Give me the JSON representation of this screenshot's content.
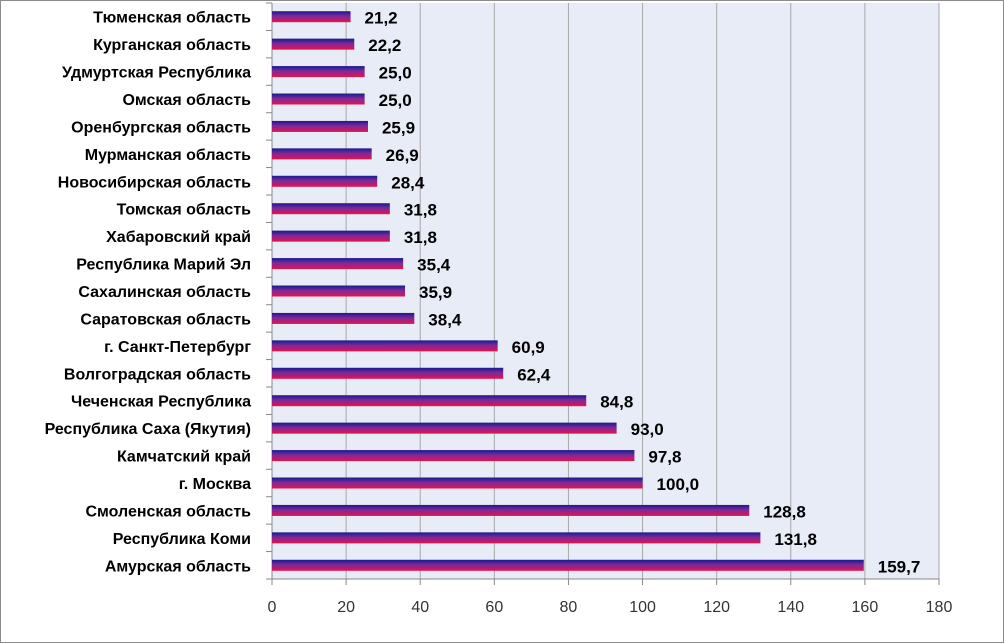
{
  "chart_data": {
    "type": "bar",
    "orientation": "horizontal",
    "categories": [
      "Тюменская область",
      "Курганская область",
      "Удмуртская Республика",
      "Омская область",
      "Оренбургская область",
      "Мурманская область",
      "Новосибирская область",
      "Томская область",
      "Хабаровский край",
      "Республика Марий Эл",
      "Сахалинская область",
      "Саратовская  область",
      "г. Санкт-Петербург",
      "Волгоградская  область",
      "Чеченская Республика",
      "Республика Саха (Якутия)",
      "Камчатский край",
      "г. Москва",
      "Смоленская область",
      "Республика Коми",
      "Амурская область"
    ],
    "values": [
      21.2,
      22.2,
      25.0,
      25.0,
      25.9,
      26.9,
      28.4,
      31.8,
      31.8,
      35.4,
      35.9,
      38.4,
      60.9,
      62.4,
      84.8,
      93.0,
      97.8,
      100.0,
      128.8,
      131.8,
      159.7
    ],
    "value_labels": [
      "21,2",
      "22,2",
      "25,0",
      "25,0",
      "25,9",
      "26,9",
      "28,4",
      "31,8",
      "31,8",
      "35,4",
      "35,9",
      "38,4",
      "60,9",
      "62,4",
      "84,8",
      "93,0",
      "97,8",
      "100,0",
      "128,8",
      "131,8",
      "159,7"
    ],
    "xlim": [
      0,
      180
    ],
    "x_ticks": [
      "0",
      "20",
      "40",
      "60",
      "80",
      "100",
      "120",
      "140",
      "160",
      "180"
    ],
    "grid": "vertical",
    "legend": "none",
    "colors": {
      "bar_top": "#1a1a8c",
      "bar_mid": "#7a2a9c",
      "bar_bottom": "#e8114a",
      "plot_background": "#e8ecf6",
      "gridline": "#a8a8a8"
    }
  }
}
